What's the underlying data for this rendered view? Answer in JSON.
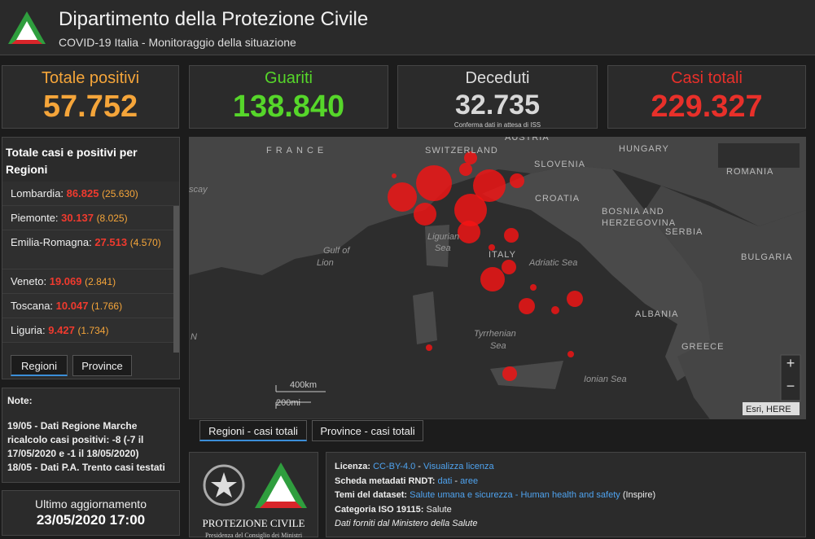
{
  "header": {
    "title": "Dipartimento della Protezione Civile",
    "subtitle": "COVID-19 Italia - Monitoraggio della situazione"
  },
  "kpis": [
    {
      "label": "Totale positivi",
      "value": "57.752",
      "color": "#f5a53a"
    },
    {
      "label": "Guariti",
      "value": "138.840",
      "color": "#56d62a"
    },
    {
      "label": "Deceduti",
      "value": "32.735",
      "note": "Conferma dati in attesa di ISS",
      "color": "#d8d8d8"
    },
    {
      "label": "Casi totali",
      "value": "229.327",
      "color": "#e8302a"
    }
  ],
  "regions": {
    "title": "Totale casi e positivi per Regioni",
    "rows": [
      {
        "name": "Lombardia:",
        "total": "86.825",
        "positive": "(25.630)"
      },
      {
        "name": "Piemonte:",
        "total": "30.137",
        "positive": "(8.025)"
      },
      {
        "name": "Emilia-Romagna:",
        "total": "27.513",
        "positive": "(4.570)"
      },
      {
        "name": "Veneto:",
        "total": "19.069",
        "positive": "(2.841)"
      },
      {
        "name": "Toscana:",
        "total": "10.047",
        "positive": "(1.766)"
      },
      {
        "name": "Liguria:",
        "total": "9.427",
        "positive": "(1.734)"
      }
    ],
    "tabs": [
      "Regioni",
      "Province"
    ]
  },
  "notes": {
    "title": "Note:",
    "items": [
      "19/05 - Dati Regione Marche ricalcolo casi positivi: -8 (-7 il 17/05/2020 e -1 il 18/05/2020)",
      "18/05 - Dati P.A. Trento casi testati"
    ]
  },
  "update": {
    "label": "Ultimo aggiornamento",
    "value": "23/05/2020 17:00"
  },
  "map": {
    "countries": [
      "FRANCE",
      "SWITZERLAND",
      "AUSTRIA",
      "HUNGARY",
      "SLOVENIA",
      "CROATIA",
      "ROMANIA",
      "BOSNIA AND",
      "HERZEGOVINA",
      "SERBIA",
      "ITALY",
      "BULGARIA",
      "ALBANIA",
      "GREECE"
    ],
    "seas": [
      "scay",
      "Ligurian",
      "Sea",
      "Gulf of",
      "Lion",
      "Adriatic Sea",
      "Tyrrhenian",
      "Sea",
      "Ionian Sea",
      "N"
    ],
    "scale": [
      "400km",
      "200mi"
    ],
    "attribution": "Esri, HERE",
    "controls": [
      "+",
      "−"
    ],
    "tabs": [
      "Regioni - casi totali",
      "Province - casi totali"
    ]
  },
  "logo": {
    "name": "PROTEZIONE CIVILE",
    "subtitle": "Presidenza del Consiglio dei Ministri"
  },
  "info": [
    [
      {
        "text": "Licenza: ",
        "kind": "key"
      },
      {
        "text": "CC-BY-4.0",
        "kind": "link"
      },
      {
        "text": " - ",
        "kind": "plain"
      },
      {
        "text": "Visualizza licenza",
        "kind": "link"
      }
    ],
    [
      {
        "text": "Scheda metadati RNDT: ",
        "kind": "key"
      },
      {
        "text": "dati",
        "kind": "link"
      },
      {
        "text": " - ",
        "kind": "plain"
      },
      {
        "text": "aree",
        "kind": "link"
      }
    ],
    [
      {
        "text": "Temi del dataset: ",
        "kind": "key"
      },
      {
        "text": "Salute umana e sicurezza - Human health and safety",
        "kind": "link"
      },
      {
        "text": " (Inspire)",
        "kind": "plain"
      }
    ],
    [
      {
        "text": "Categoria ISO 19115: ",
        "kind": "key"
      },
      {
        "text": "Salute",
        "kind": "plain"
      }
    ],
    [
      {
        "text": "Dati forniti dal Ministero della Salute",
        "kind": "italic"
      }
    ]
  ]
}
